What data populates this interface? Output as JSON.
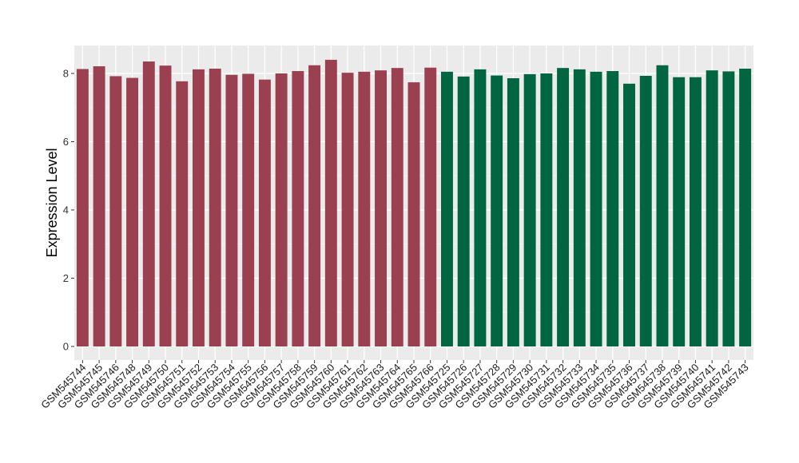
{
  "chart_data": {
    "type": "bar",
    "title": "",
    "xlabel": "",
    "ylabel": "Expression Level",
    "ylim": [
      0,
      8.8
    ],
    "yticks": [
      0,
      2,
      4,
      6,
      8
    ],
    "grid": true,
    "panel_background": "#ebebeb",
    "categories": [
      "GSM545744",
      "GSM545745",
      "GSM545746",
      "GSM545748",
      "GSM545749",
      "GSM545750",
      "GSM545751",
      "GSM545752",
      "GSM545753",
      "GSM545754",
      "GSM545755",
      "GSM545756",
      "GSM545757",
      "GSM545758",
      "GSM545759",
      "GSM545760",
      "GSM545761",
      "GSM545762",
      "GSM545763",
      "GSM545764",
      "GSM545765",
      "GSM545766",
      "GSM545725",
      "GSM545726",
      "GSM545727",
      "GSM545728",
      "GSM545729",
      "GSM545730",
      "GSM545731",
      "GSM545732",
      "GSM545733",
      "GSM545734",
      "GSM545735",
      "GSM545736",
      "GSM545737",
      "GSM545738",
      "GSM545739",
      "GSM545740",
      "GSM545741",
      "GSM545742",
      "GSM545743"
    ],
    "values": [
      8.13,
      8.21,
      7.92,
      7.87,
      8.35,
      8.23,
      7.77,
      8.12,
      8.14,
      7.96,
      7.99,
      7.82,
      8.0,
      8.07,
      8.24,
      8.4,
      8.02,
      8.05,
      8.09,
      8.16,
      7.74,
      8.17,
      8.05,
      7.91,
      8.12,
      7.94,
      7.86,
      7.98,
      8.0,
      8.16,
      8.12,
      8.05,
      8.07,
      7.7,
      7.93,
      8.24,
      7.89,
      7.89,
      8.09,
      8.06,
      8.14
    ],
    "group_sizes": [
      22,
      19
    ],
    "group_colors": [
      "#9b4050",
      "#006642"
    ]
  }
}
